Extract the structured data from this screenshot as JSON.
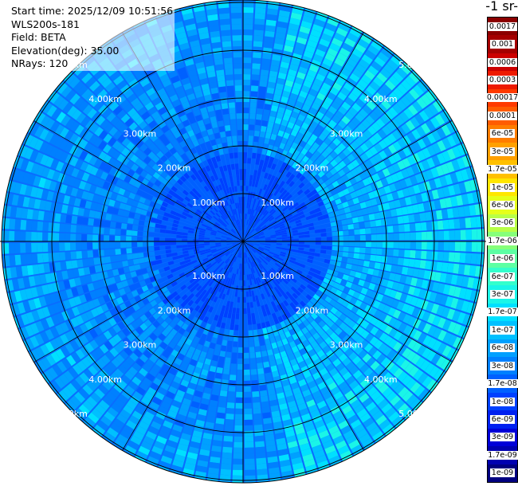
{
  "info": {
    "start_time": "Start time: 2025/12/09 10:51:56",
    "instrument": "WLS200s-181",
    "field": "Field: BETA",
    "elevation": "Elevation(deg): 35.00",
    "nrays": "NRays: 120"
  },
  "colorbar": {
    "title": "-1 sr-",
    "levels": [
      {
        "label": "0.0017",
        "color": "#8b0000"
      },
      {
        "label": "0.001",
        "color": "#a50000"
      },
      {
        "label": "0.0006",
        "color": "#cc0000"
      },
      {
        "label": "0.0003",
        "color": "#ee1a00"
      },
      {
        "label": "0.00017",
        "color": "#ff3a00"
      },
      {
        "label": "0.0001",
        "color": "#ff5c00"
      },
      {
        "label": "6e-05",
        "color": "#ff7d00"
      },
      {
        "label": "3e-05",
        "color": "#ffa000"
      },
      {
        "label": "1.7e-05",
        "color": "#ffc000"
      },
      {
        "label": "1e-05",
        "color": "#ffe600"
      },
      {
        "label": "6e-06",
        "color": "#e6ff1a"
      },
      {
        "label": "3e-06",
        "color": "#b8ff47"
      },
      {
        "label": "1.7e-06",
        "color": "#86ff7a"
      },
      {
        "label": "1e-06",
        "color": "#5cffa3"
      },
      {
        "label": "6e-07",
        "color": "#33ffcc"
      },
      {
        "label": "3e-07",
        "color": "#1af5e8"
      },
      {
        "label": "1.7e-07",
        "color": "#00e0ff"
      },
      {
        "label": "1e-07",
        "color": "#00c0ff"
      },
      {
        "label": "6e-08",
        "color": "#00a0ff"
      },
      {
        "label": "3e-08",
        "color": "#0080ff"
      },
      {
        "label": "1.7e-08",
        "color": "#0060ff"
      },
      {
        "label": "1e-08",
        "color": "#0040ff"
      },
      {
        "label": "6e-09",
        "color": "#0020f0"
      },
      {
        "label": "3e-09",
        "color": "#0000d8"
      },
      {
        "label": "1.7e-09",
        "color": "#0000b0"
      },
      {
        "label": "1e-09",
        "color": "#000080"
      }
    ]
  },
  "range_rings": [
    "1.00km",
    "2.00km",
    "3.00km",
    "4.00km",
    "5.00km"
  ]
}
